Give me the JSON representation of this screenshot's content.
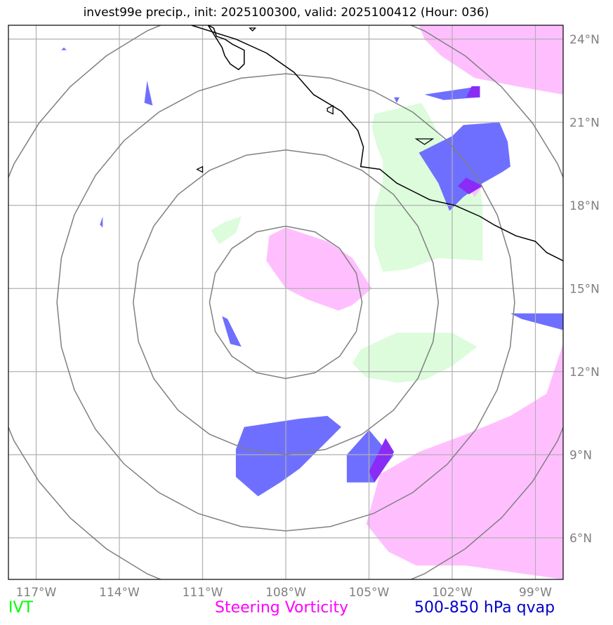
{
  "title": "invest99e precip., init: 2025100300, valid: 2025100412 (Hour: 036)",
  "map": {
    "lon_range": [
      -118,
      -98
    ],
    "lat_range": [
      4.5,
      24.5
    ],
    "lon_ticks": [
      -117,
      -114,
      -111,
      -108,
      -105,
      -102,
      -99
    ],
    "lat_ticks": [
      6,
      9,
      12,
      15,
      18,
      21,
      24
    ],
    "lon_tick_labels": [
      "117°W",
      "114°W",
      "111°W",
      "108°W",
      "105°W",
      "102°W",
      "99°W"
    ],
    "lat_tick_labels": [
      "6°N",
      "9°N",
      "12°N",
      "15°N",
      "18°N",
      "21°N",
      "24°N"
    ],
    "grid": true,
    "storm_center": [
      -108,
      14.5
    ],
    "range_rings_deg": [
      2.75,
      5.5,
      8.25,
      11.0
    ]
  },
  "legend": [
    {
      "label": "IVT",
      "color": "#00ff00"
    },
    {
      "label": "Steering Vorticity",
      "color": "#ff00ff"
    },
    {
      "label": "500-850 hPa qvap",
      "color": "#0000cc"
    }
  ],
  "colors": {
    "ivt_fill": "#dcfcdc",
    "vorticity_fill": "#ffbfff",
    "qvap_fill": "#6f6fff",
    "overlap_fill": "#8a2cf5",
    "ring_stroke": "#808080",
    "grid_stroke": "#b0b0b0",
    "coast_stroke": "#000000",
    "tick_label_color": "#808080"
  },
  "fields": {
    "ivt": [
      [
        [
          -104.8,
          21.3
        ],
        [
          -103.1,
          21.7
        ],
        [
          -102.6,
          20.8
        ],
        [
          -102.1,
          19.9
        ],
        [
          -101.1,
          19.2
        ],
        [
          -100.9,
          18.0
        ],
        [
          -100.9,
          16.0
        ],
        [
          -102.5,
          16.1
        ],
        [
          -103.6,
          15.7
        ],
        [
          -104.5,
          15.6
        ],
        [
          -104.8,
          16.5
        ],
        [
          -104.8,
          17.9
        ],
        [
          -104.5,
          18.9
        ],
        [
          -104.5,
          19.6
        ],
        [
          -104.7,
          20.1
        ],
        [
          -104.9,
          20.8
        ]
      ],
      [
        [
          -105.3,
          12.8
        ],
        [
          -104.0,
          13.4
        ],
        [
          -102.0,
          13.4
        ],
        [
          -101.1,
          12.9
        ],
        [
          -102.0,
          12.2
        ],
        [
          -103.0,
          11.7
        ],
        [
          -104.0,
          11.6
        ],
        [
          -105.1,
          11.8
        ],
        [
          -105.6,
          12.3
        ]
      ],
      [
        [
          -110.7,
          17.1
        ],
        [
          -110.2,
          17.4
        ],
        [
          -109.6,
          17.6
        ],
        [
          -109.8,
          17.0
        ],
        [
          -110.4,
          16.6
        ]
      ]
    ],
    "vorticity": [
      [
        [
          -108.0,
          17.2
        ],
        [
          -106.5,
          16.7
        ],
        [
          -105.6,
          16.1
        ],
        [
          -104.9,
          15.0
        ],
        [
          -105.6,
          14.4
        ],
        [
          -106.1,
          14.2
        ],
        [
          -107.2,
          14.6
        ],
        [
          -108.0,
          15.0
        ],
        [
          -108.7,
          16.0
        ],
        [
          -108.6,
          16.9
        ]
      ],
      [
        [
          -103.2,
          24.5
        ],
        [
          -98.0,
          24.5
        ],
        [
          -98.0,
          22.0
        ],
        [
          -99.7,
          22.3
        ],
        [
          -101.2,
          22.6
        ],
        [
          -102.4,
          23.4
        ],
        [
          -103.0,
          24.0
        ]
      ],
      [
        [
          -105.1,
          6.5
        ],
        [
          -104.6,
          8.3
        ],
        [
          -103.2,
          9.1
        ],
        [
          -101.6,
          9.7
        ],
        [
          -99.9,
          10.4
        ],
        [
          -98.6,
          11.2
        ],
        [
          -98.0,
          13.0
        ],
        [
          -98.0,
          4.5
        ],
        [
          -101.5,
          5.0
        ],
        [
          -103.3,
          5.0
        ],
        [
          -104.3,
          5.5
        ]
      ],
      [
        [
          -101.6,
          19.0
        ],
        [
          -101.2,
          18.3
        ],
        [
          -100.9,
          18.7
        ]
      ]
    ],
    "qvap": [
      [
        [
          -109.5,
          10.0
        ],
        [
          -107.5,
          10.3
        ],
        [
          -106.5,
          10.4
        ],
        [
          -106.0,
          10.0
        ],
        [
          -107.0,
          9.0
        ],
        [
          -107.5,
          8.5
        ],
        [
          -108.2,
          8.0
        ],
        [
          -109.0,
          7.5
        ],
        [
          -109.8,
          8.2
        ],
        [
          -109.8,
          9.2
        ]
      ],
      [
        [
          -105.8,
          9.0
        ],
        [
          -105.0,
          9.9
        ],
        [
          -104.5,
          9.3
        ],
        [
          -104.1,
          9.0
        ],
        [
          -104.4,
          8.6
        ],
        [
          -104.8,
          8.0
        ],
        [
          -105.8,
          8.0
        ]
      ],
      [
        [
          -103.2,
          19.9
        ],
        [
          -102.0,
          20.5
        ],
        [
          -101.6,
          20.9
        ],
        [
          -100.3,
          21.0
        ],
        [
          -100.0,
          20.3
        ],
        [
          -99.9,
          19.4
        ],
        [
          -100.2,
          19.2
        ],
        [
          -100.9,
          18.8
        ],
        [
          -101.6,
          18.3
        ],
        [
          -102.1,
          17.8
        ],
        [
          -102.5,
          18.8
        ]
      ],
      [
        [
          -103.0,
          22.0
        ],
        [
          -101.0,
          22.3
        ],
        [
          -101.0,
          21.9
        ],
        [
          -102.3,
          21.8
        ]
      ],
      [
        [
          -99.9,
          14.1
        ],
        [
          -98.0,
          14.1
        ],
        [
          -98.0,
          13.5
        ],
        [
          -99.5,
          13.9
        ]
      ],
      [
        [
          -110.1,
          13.9
        ],
        [
          -109.6,
          12.9
        ],
        [
          -110.0,
          13.0
        ],
        [
          -110.3,
          14.0
        ]
      ],
      [
        [
          -113.0,
          22.5
        ],
        [
          -112.8,
          21.6
        ],
        [
          -113.1,
          21.7
        ]
      ],
      [
        [
          -114.6,
          17.6
        ],
        [
          -114.6,
          17.2
        ],
        [
          -114.7,
          17.3
        ]
      ],
      [
        [
          -116.1,
          23.6
        ],
        [
          -115.9,
          23.6
        ],
        [
          -116.0,
          23.7
        ]
      ],
      [
        [
          -104.1,
          21.9
        ],
        [
          -103.9,
          21.9
        ],
        [
          -104.0,
          21.7
        ]
      ]
    ],
    "overlap": [
      [
        [
          -104.4,
          9.6
        ],
        [
          -104.1,
          9.1
        ],
        [
          -104.4,
          8.6
        ],
        [
          -104.8,
          8.0
        ],
        [
          -105.0,
          8.4
        ]
      ],
      [
        [
          -101.5,
          19.0
        ],
        [
          -100.9,
          18.7
        ],
        [
          -101.4,
          18.4
        ],
        [
          -101.8,
          18.7
        ]
      ],
      [
        [
          -101.3,
          22.3
        ],
        [
          -101.0,
          22.3
        ],
        [
          -101.0,
          21.9
        ],
        [
          -101.5,
          21.9
        ]
      ]
    ]
  },
  "coast": {
    "mainland": [
      [
        -111.4,
        24.5
      ],
      [
        -109.8,
        24.0
      ],
      [
        -108.7,
        23.5
      ],
      [
        -107.7,
        22.8
      ],
      [
        -107.0,
        22.0
      ],
      [
        -106.0,
        21.4
      ],
      [
        -105.4,
        20.7
      ],
      [
        -105.2,
        20.1
      ],
      [
        -105.3,
        19.4
      ],
      [
        -104.6,
        19.3
      ],
      [
        -104.0,
        18.8
      ],
      [
        -103.4,
        18.5
      ],
      [
        -102.8,
        18.2
      ],
      [
        -101.9,
        18.0
      ],
      [
        -101.0,
        17.6
      ],
      [
        -100.5,
        17.3
      ],
      [
        -99.7,
        16.9
      ],
      [
        -99.0,
        16.7
      ],
      [
        -98.6,
        16.3
      ],
      [
        -98.0,
        16.0
      ]
    ],
    "baja": [
      [
        -110.8,
        24.5
      ],
      [
        -110.6,
        24.4
      ],
      [
        -110.5,
        24.1
      ],
      [
        -110.2,
        24.0
      ],
      [
        -109.9,
        23.8
      ],
      [
        -109.5,
        23.6
      ],
      [
        -109.5,
        23.1
      ],
      [
        -109.7,
        22.9
      ],
      [
        -110.0,
        23.1
      ],
      [
        -110.2,
        23.4
      ],
      [
        -110.3,
        23.7
      ]
    ],
    "islands": [
      [
        [
          -106.5,
          21.5
        ],
        [
          -106.3,
          21.6
        ],
        [
          -106.3,
          21.3
        ],
        [
          -106.5,
          21.4
        ]
      ],
      [
        [
          -109.3,
          24.4
        ],
        [
          -109.2,
          24.3
        ],
        [
          -109.1,
          24.4
        ]
      ],
      [
        [
          -103.3,
          20.4
        ],
        [
          -102.7,
          20.4
        ],
        [
          -103.0,
          20.2
        ]
      ],
      [
        [
          -111.2,
          19.3
        ],
        [
          -111.0,
          19.4
        ],
        [
          -111.0,
          19.2
        ]
      ]
    ]
  }
}
